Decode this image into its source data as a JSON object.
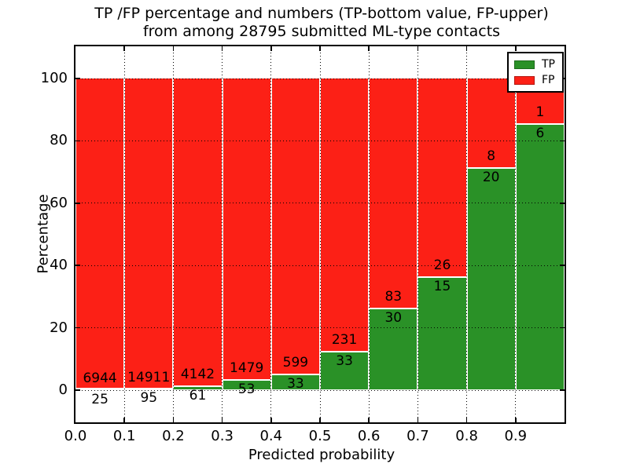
{
  "title": {
    "line1": "TP /FP percentage and numbers (TP-bottom value, FP-upper)",
    "line2": "from among 28795 submitted ML-type contacts"
  },
  "axes": {
    "xlabel": "Predicted probability",
    "ylabel": "Percentage",
    "x_tick_labels": [
      "0.0",
      "0.1",
      "0.2",
      "0.3",
      "0.4",
      "0.5",
      "0.6",
      "0.7",
      "0.8",
      "0.9"
    ],
    "y_tick_labels": [
      "0",
      "20",
      "40",
      "60",
      "80",
      "100"
    ],
    "y_tick_values": [
      0,
      20,
      40,
      60,
      80,
      100
    ]
  },
  "legend": {
    "items": [
      {
        "label": "TP",
        "color": "#2a9127",
        "edge": "#1d6b1c"
      },
      {
        "label": "FP",
        "color": "#fc2016",
        "edge": "#b3140e"
      }
    ]
  },
  "colors": {
    "tp": "#2a9127",
    "fp": "#fc2016",
    "grid": "#000000",
    "bar_edge": "#ffffff",
    "spine": "#000000"
  },
  "chart_data": {
    "type": "bar",
    "subtype": "stacked_percentage",
    "title": "TP /FP percentage and numbers (TP-bottom value, FP-upper) from among 28795 submitted ML-type contacts",
    "xlabel": "Predicted probability",
    "ylabel": "Percentage",
    "total_contacts": 28795,
    "bin_starts": [
      0.0,
      0.1,
      0.2,
      0.3,
      0.4,
      0.5,
      0.6,
      0.7,
      0.8,
      0.9
    ],
    "bin_width": 0.1,
    "series": [
      {
        "name": "TP",
        "counts": [
          25,
          95,
          61,
          53,
          33,
          33,
          30,
          15,
          20,
          6
        ]
      },
      {
        "name": "FP",
        "counts": [
          6944,
          14911,
          4142,
          1479,
          599,
          231,
          83,
          26,
          8,
          1
        ]
      }
    ],
    "tp_percent": [
      0.36,
      0.63,
      1.45,
      3.46,
      5.22,
      12.5,
      26.55,
      36.59,
      71.43,
      85.71
    ],
    "xlim": [
      0.0,
      1.0
    ],
    "ylim": [
      -11,
      110
    ],
    "grid": true,
    "grid_style": "dotted",
    "legend_position": "upper right"
  }
}
